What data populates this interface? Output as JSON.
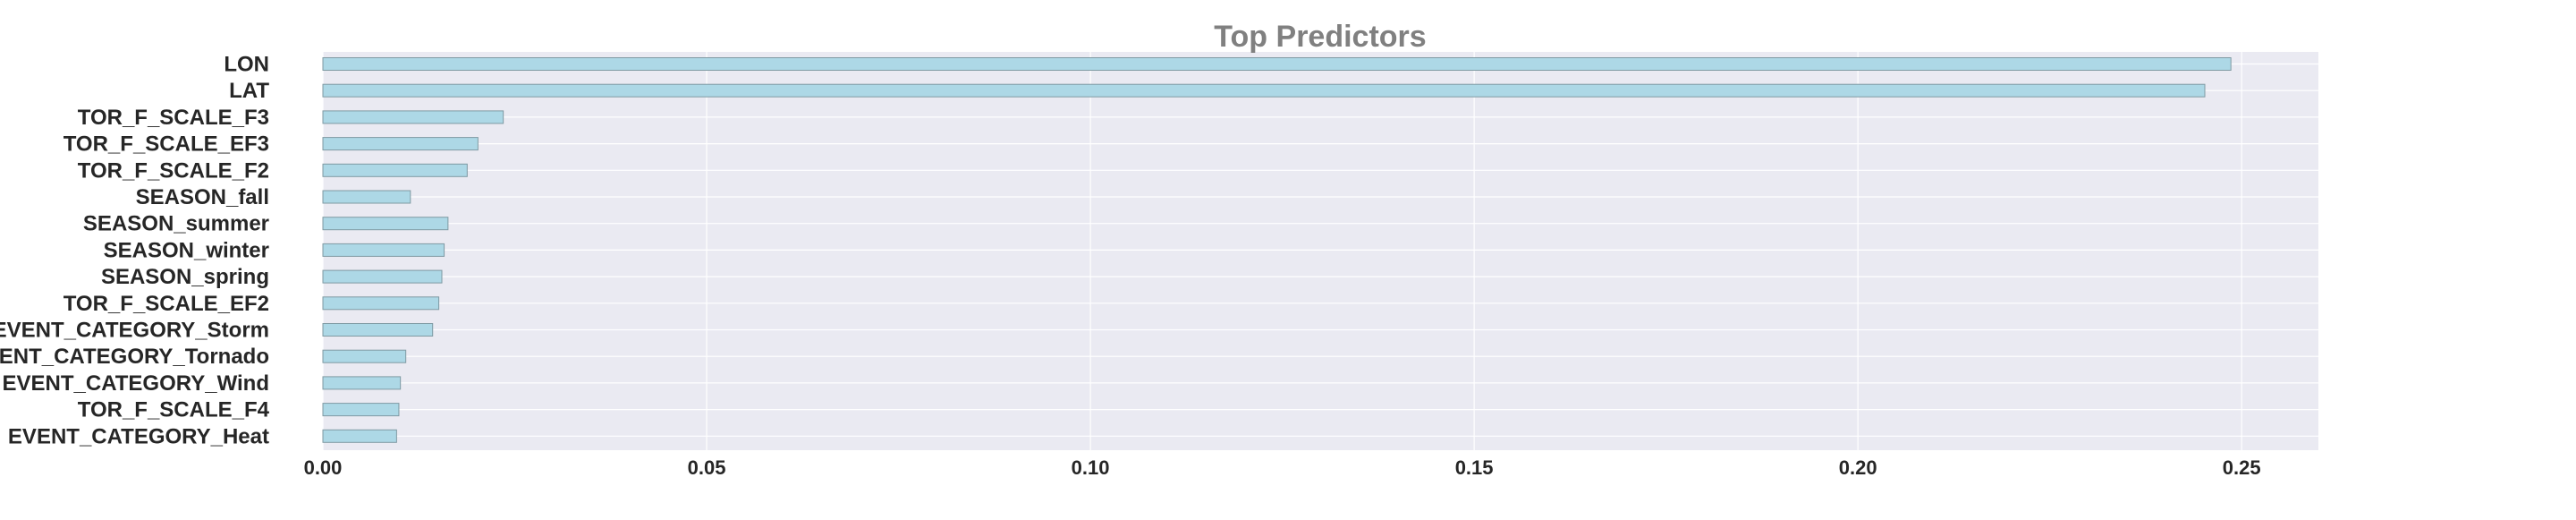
{
  "chart_data": {
    "type": "bar",
    "orientation": "horizontal",
    "title": "Top Predictors",
    "xlabel": "",
    "ylabel": "",
    "xlim": [
      0,
      0.26
    ],
    "xticks": [
      "0.00",
      "0.05",
      "0.10",
      "0.15",
      "0.20",
      "0.25"
    ],
    "grid": true,
    "categories": [
      "LON",
      "LAT",
      "TOR_F_SCALE_F3",
      "TOR_F_SCALE_EF3",
      "TOR_F_SCALE_F2",
      "SEASON_fall",
      "SEASON_summer",
      "SEASON_winter",
      "SEASON_spring",
      "TOR_F_SCALE_EF2",
      "EVENT_CATEGORY_Storm",
      "EVENT_CATEGORY_Tornado",
      "EVENT_CATEGORY_Wind",
      "TOR_F_SCALE_F4",
      "EVENT_CATEGORY_Heat"
    ],
    "values": [
      0.2486,
      0.2452,
      0.0235,
      0.0202,
      0.0188,
      0.0114,
      0.0163,
      0.0158,
      0.0155,
      0.0151,
      0.0143,
      0.0108,
      0.0101,
      0.0099,
      0.0096
    ],
    "colors": {
      "bar_fill": "#add8e6",
      "bar_edge": "#7f9aa3",
      "plot_bg": "#eaeaf2",
      "grid": "#ffffff",
      "title": "#808080",
      "text": "#262626"
    }
  }
}
